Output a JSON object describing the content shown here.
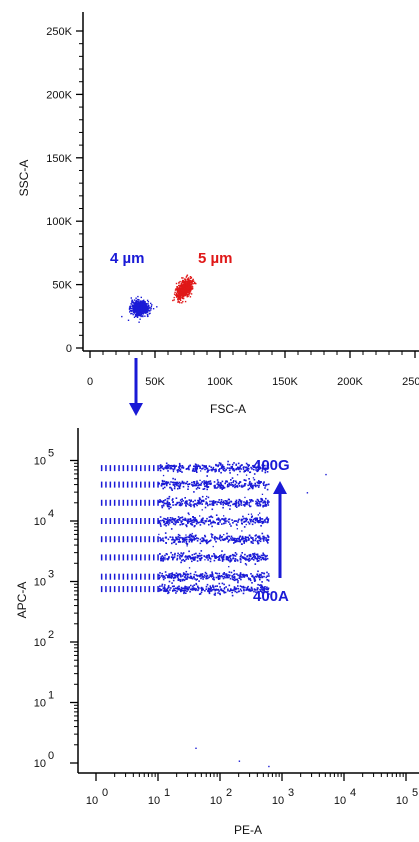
{
  "colors": {
    "blue": "#1a1ad6",
    "red": "#e01818",
    "axis": "#000000"
  },
  "chart_data": [
    {
      "type": "scatter",
      "xlabel": "FSC-A",
      "ylabel": "SSC-A",
      "xlim": [
        0,
        262144
      ],
      "ylim": [
        0,
        262144
      ],
      "x_ticks": [
        0,
        50000,
        100000,
        150000,
        200000,
        250000
      ],
      "x_tick_labels": [
        "0",
        "50K",
        "100K",
        "150K",
        "200K",
        "250K"
      ],
      "y_ticks": [
        0,
        50000,
        100000,
        150000,
        200000,
        250000
      ],
      "y_tick_labels": [
        "0",
        "50K",
        "100K",
        "150K",
        "200K",
        "250K"
      ],
      "series": [
        {
          "name": "4 µm",
          "color": "#1a1ad6",
          "center": [
            38000,
            32000
          ],
          "spread": [
            6000,
            5000
          ],
          "points": 750
        },
        {
          "name": "5 µm",
          "color": "#e01818",
          "center": [
            72000,
            47000
          ],
          "spread": [
            5500,
            6000
          ],
          "points": 650
        }
      ],
      "annotations": [
        {
          "text": "4 µm",
          "color": "#1a1ad6"
        },
        {
          "text": "5 µm",
          "color": "#e01818"
        }
      ]
    },
    {
      "type": "scatter",
      "xlabel": "PE-A",
      "ylabel": "APC-A",
      "xscale": "log",
      "yscale": "log",
      "xlim": [
        0.5,
        120000
      ],
      "ylim": [
        0.5,
        120000
      ],
      "x_ticks_exp": [
        "0",
        "1",
        "2",
        "3",
        "4",
        "5"
      ],
      "y_ticks_exp": [
        "0",
        "1",
        "2",
        "3",
        "4",
        "5"
      ],
      "tick_base": "10",
      "bands_apc": [
        75000,
        40000,
        20000,
        10000,
        5000,
        2500,
        1200,
        750
      ],
      "band_pe_range": [
        1.2,
        600
      ],
      "color": "#1a1ad6",
      "annotations": [
        {
          "text": "400G",
          "color": "#1a1ad6"
        },
        {
          "text": "400A",
          "color": "#1a1ad6"
        }
      ]
    }
  ]
}
